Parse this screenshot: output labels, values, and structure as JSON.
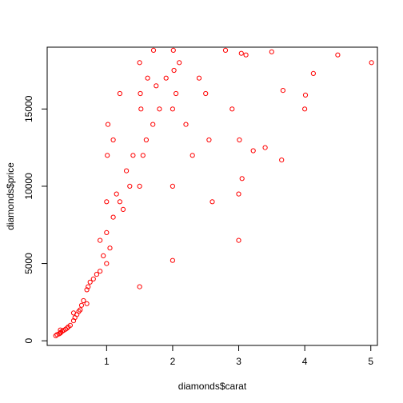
{
  "chart_data": {
    "type": "scatter",
    "xlabel": "diamonds$carat",
    "ylabel": "diamonds$price",
    "xlim": [
      0.1,
      5.1
    ],
    "ylim": [
      -300,
      19000
    ],
    "x_ticks": [
      1,
      2,
      3,
      4,
      5
    ],
    "y_ticks": [
      0,
      5000,
      10000,
      15000
    ],
    "x_tick_labels": [
      "1",
      "2",
      "3",
      "4",
      "5"
    ],
    "y_tick_labels": [
      "0",
      "5000",
      "10000",
      "15000"
    ],
    "grid": false,
    "marker": "open-circle",
    "point_color": "#ff0000",
    "series": [
      {
        "x": [
          0.23,
          0.25,
          0.28,
          0.3,
          0.3,
          0.31,
          0.33,
          0.35,
          0.38,
          0.4,
          0.42,
          0.45,
          0.5,
          0.5,
          0.52,
          0.55,
          0.58,
          0.6,
          0.62,
          0.65,
          0.7,
          0.7,
          0.72,
          0.75,
          0.8,
          0.85,
          0.9,
          0.9,
          0.95,
          1.0,
          1.0,
          1.0,
          1.01,
          1.02,
          1.05,
          1.1,
          1.1,
          1.15,
          1.2,
          1.2,
          1.25,
          1.3,
          1.35,
          1.4,
          1.5,
          1.5,
          1.5,
          1.51,
          1.52,
          1.55,
          1.6,
          1.62,
          1.7,
          1.71,
          1.75,
          1.8,
          1.9,
          2.0,
          2.0,
          2.0,
          2.01,
          2.02,
          2.05,
          2.1,
          2.2,
          2.3,
          2.4,
          2.5,
          2.55,
          2.6,
          2.8,
          2.9,
          3.0,
          3.0,
          3.01,
          3.04,
          3.05,
          3.11,
          3.22,
          3.4,
          3.5,
          3.65,
          3.67,
          4.0,
          4.01,
          4.13,
          4.5,
          5.01
        ],
        "y": [
          326,
          400,
          450,
          500,
          700,
          560,
          620,
          680,
          750,
          820,
          900,
          1000,
          1300,
          1800,
          1500,
          1700,
          1900,
          2000,
          2300,
          2600,
          2400,
          3300,
          3500,
          3800,
          4000,
          4300,
          4500,
          6500,
          5500,
          5000,
          7000,
          9000,
          12000,
          14000,
          6000,
          8000,
          13000,
          9500,
          9000,
          16000,
          8500,
          11000,
          10000,
          12000,
          3500,
          10000,
          18000,
          16000,
          15000,
          12000,
          13000,
          17000,
          14000,
          18800,
          16500,
          15000,
          17000,
          5200,
          10000,
          15000,
          18800,
          17500,
          16000,
          18000,
          14000,
          12000,
          17000,
          16000,
          13000,
          9000,
          18800,
          15000,
          6500,
          9500,
          13000,
          18600,
          10500,
          18500,
          12300,
          12500,
          18700,
          11700,
          16200,
          15000,
          15900,
          17300,
          18500,
          18000
        ]
      }
    ]
  }
}
